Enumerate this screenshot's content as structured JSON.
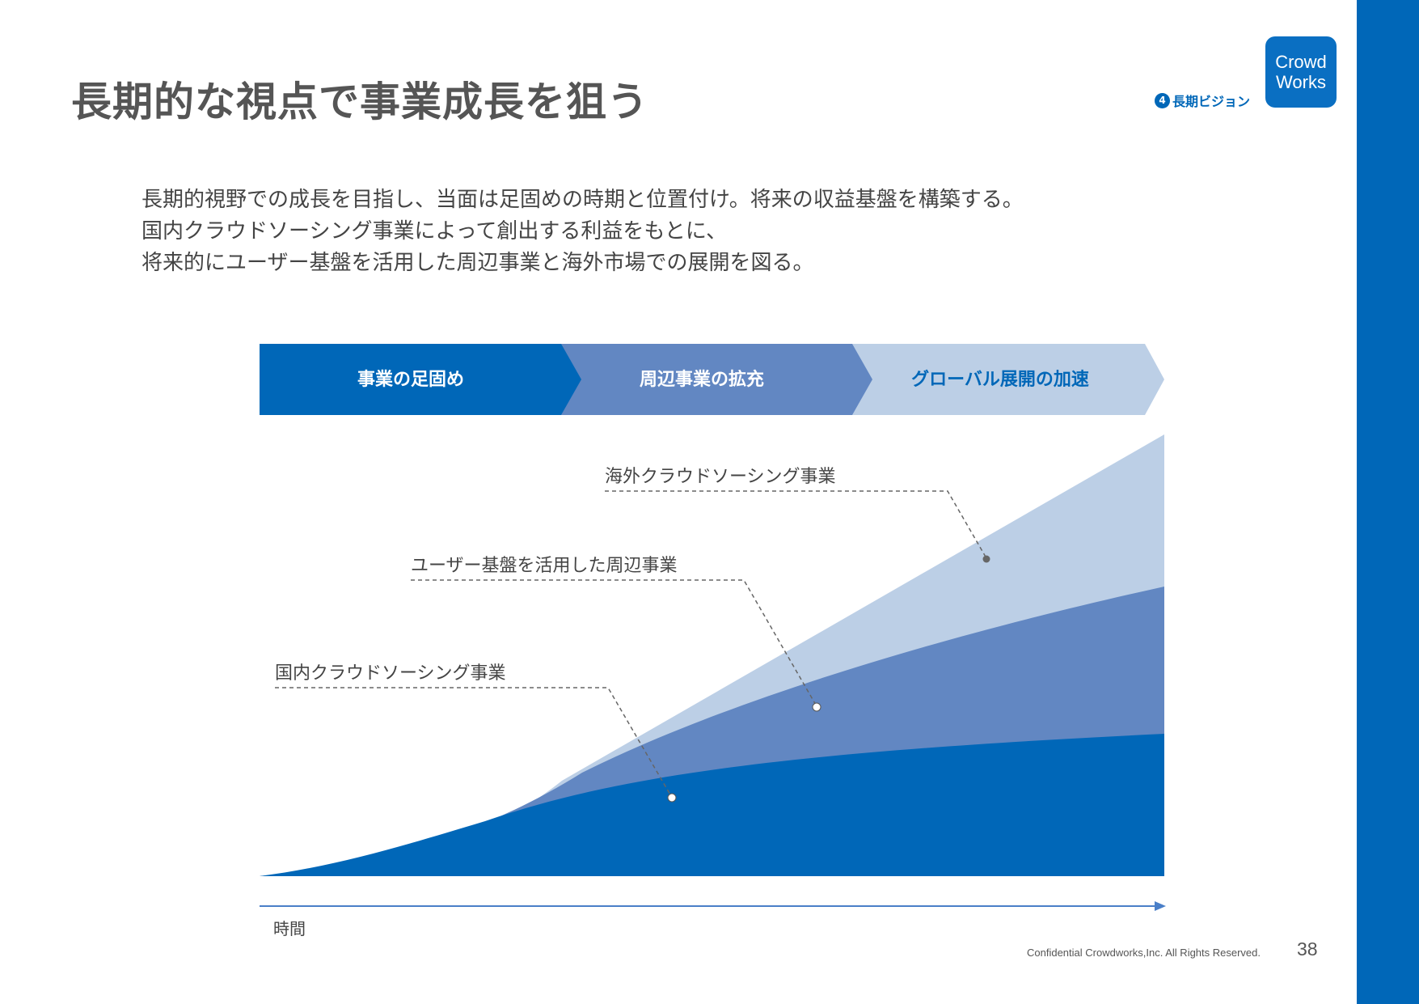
{
  "title": "長期的な視点で事業成長を狙う",
  "section_tag": {
    "number": "4",
    "label": "長期ビジョン"
  },
  "logo": {
    "line1": "Crowd",
    "line2": "Works"
  },
  "intro_lines": [
    "長期的視野での成長を目指し、当面は足固めの時期と位置付け。将来の収益基盤を構築する。",
    "国内クラウドソーシング事業によって創出する利益をもとに、",
    "将来的にユーザー基盤を活用した周辺事業と海外市場での展開を図る。"
  ],
  "phases": [
    {
      "label": "事業の足固め",
      "color": "#0067b8",
      "text_color": "#ffffff"
    },
    {
      "label": "周辺事業の拡充",
      "color": "#6287c2",
      "text_color": "#ffffff"
    },
    {
      "label": "グローバル展開の加速",
      "color": "#bccfe6",
      "text_color": "#0067b8"
    }
  ],
  "layers": [
    {
      "label": "国内クラウドソーシング事業",
      "color": "#0067b8"
    },
    {
      "label": "ユーザー基盤を活用した周辺事業",
      "color": "#6287c2"
    },
    {
      "label": "海外クラウドソーシング事業",
      "color": "#bccfe6"
    }
  ],
  "axis_label": "時間",
  "axis_color": "#4a7fc8",
  "footer": "Confidential Crowdworks,Inc. All Rights Reserved.",
  "page_number": "38"
}
